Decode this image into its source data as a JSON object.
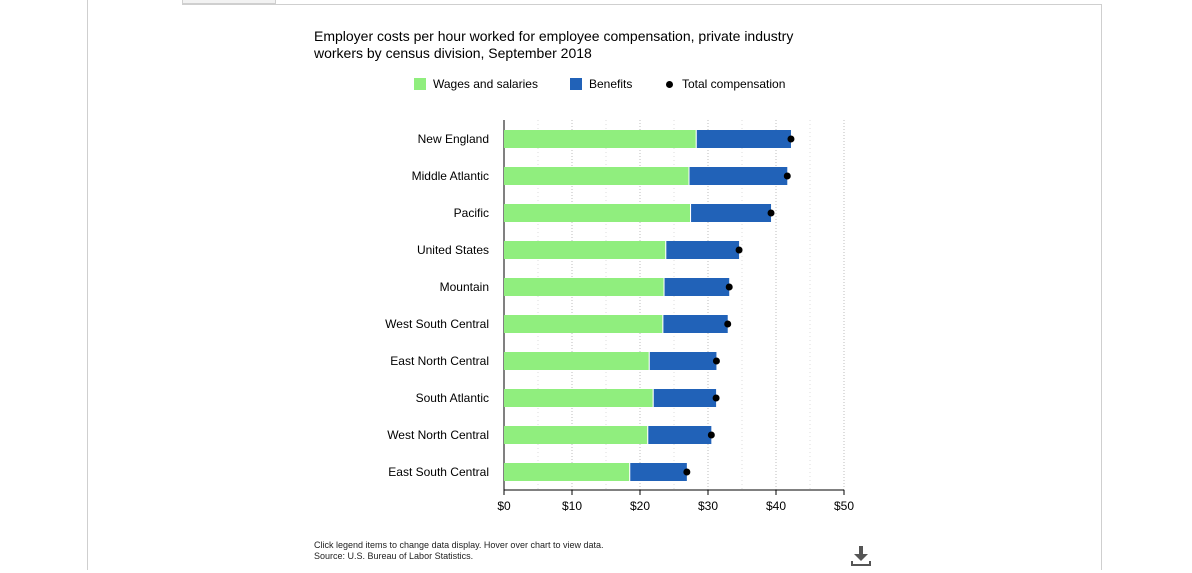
{
  "chart_data": {
    "type": "bar",
    "stacked": true,
    "orientation": "horizontal",
    "title": "Employer costs per hour worked for employee compensation, private industry workers by census division, September 2018",
    "categories": [
      "New England",
      "Middle Atlantic",
      "Pacific",
      "United States",
      "Mountain",
      "West South Central",
      "East North Central",
      "South Atlantic",
      "West North Central",
      "East South Central"
    ],
    "series": [
      {
        "name": "Wages and salaries",
        "color": "#90ee7e",
        "values": [
          28.35,
          27.28,
          27.51,
          23.87,
          23.61,
          23.44,
          21.44,
          22.02,
          21.22,
          18.57
        ]
      },
      {
        "name": "Benefits",
        "color": "#2162b8",
        "values": [
          13.85,
          14.38,
          11.76,
          10.7,
          9.51,
          9.46,
          9.8,
          9.17,
          9.27,
          8.32
        ]
      }
    ],
    "total": {
      "name": "Total compensation",
      "color": "#000000",
      "values": [
        42.2,
        41.66,
        39.27,
        34.57,
        33.12,
        32.9,
        31.24,
        31.19,
        30.49,
        26.89
      ]
    },
    "xlim": [
      0,
      50
    ],
    "xticks": [
      0,
      10,
      20,
      30,
      40,
      50
    ],
    "xtick_labels": [
      "$0",
      "$10",
      "$20",
      "$30",
      "$40",
      "$50"
    ],
    "grid": true,
    "legend_position": "top"
  },
  "footnote": {
    "line1": "Click legend items to change data display. Hover over chart to view data.",
    "line2": "Source: U.S. Bureau of Labor Statistics."
  },
  "download_icon": "download-icon"
}
